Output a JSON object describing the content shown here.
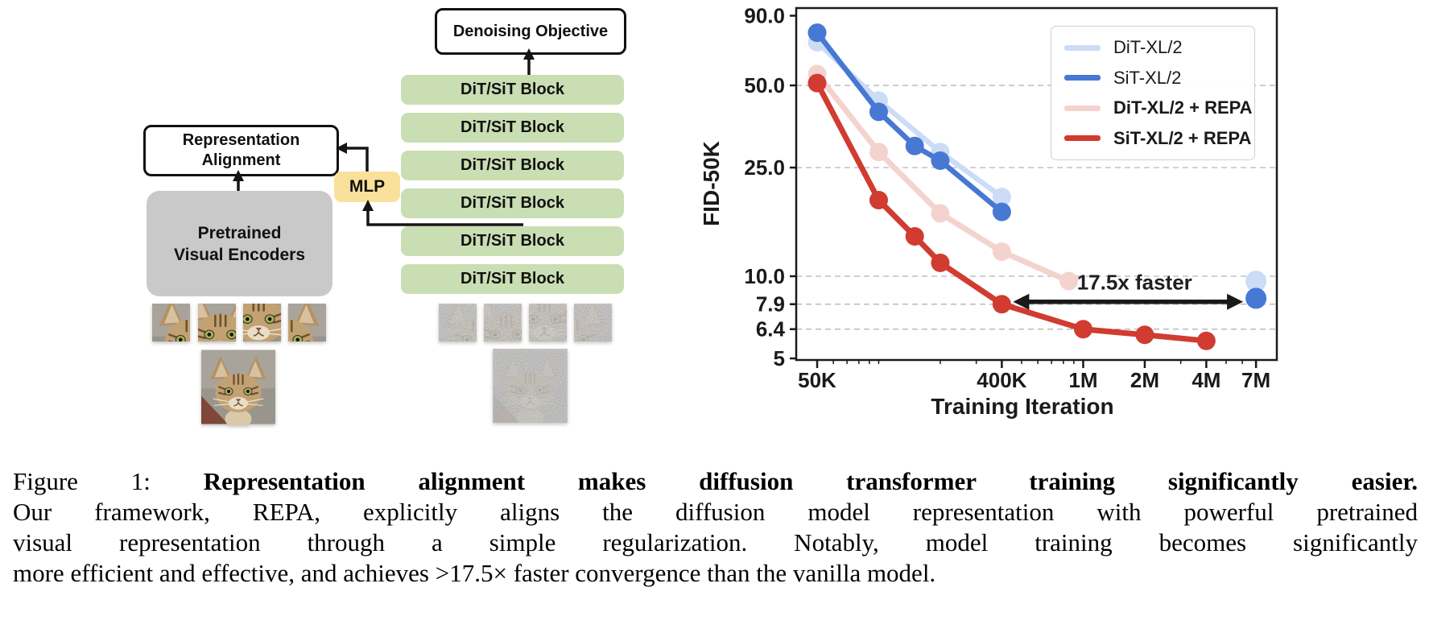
{
  "diagram": {
    "denoising_objective_label": "Denoising Objective",
    "block_label": "DiT/SiT Block",
    "num_blocks": 6,
    "representation_alignment_line1": "Representation",
    "representation_alignment_line2": "Alignment",
    "mlp_label": "MLP",
    "pretrained_line1": "Pretrained",
    "pretrained_line2": "Visual Encoders",
    "colors": {
      "block_green": "#c9deb3",
      "mlp_yellow": "#fae19b",
      "encoder_gray": "#c9c9c9",
      "box_border": "#111111"
    }
  },
  "chart_data": {
    "type": "line",
    "title": "",
    "xlabel": "Training Iteration",
    "ylabel": "FID-50K",
    "x_scale": "log",
    "y_scale": "log",
    "xlim": [
      45000,
      8500000
    ],
    "ylim": [
      5,
      95
    ],
    "grid": "dashed horizontal",
    "legend_position": "upper right",
    "x_ticks": [
      {
        "v": 50000,
        "label": "50K"
      },
      {
        "v": 400000,
        "label": "400K"
      },
      {
        "v": 1000000,
        "label": "1M"
      },
      {
        "v": 2000000,
        "label": "2M"
      },
      {
        "v": 4000000,
        "label": "4M"
      },
      {
        "v": 7000000,
        "label": "7M"
      }
    ],
    "y_ticks": [
      {
        "v": 90,
        "label": "90.0"
      },
      {
        "v": 50,
        "label": "50.0"
      },
      {
        "v": 25,
        "label": "25.0"
      },
      {
        "v": 10,
        "label": "10.0"
      },
      {
        "v": 7.9,
        "label": "7.9"
      },
      {
        "v": 6.4,
        "label": "6.4"
      },
      {
        "v": 5,
        "label": "5"
      }
    ],
    "y_gridlines": [
      50,
      25,
      10,
      7.9,
      6.4
    ],
    "series": [
      {
        "name": "DiT-XL/2",
        "color": "#ccdcf6",
        "bold": false,
        "points": [
          [
            50000,
            72
          ],
          [
            100000,
            44
          ],
          [
            200000,
            28.5
          ],
          [
            400000,
            19.5
          ]
        ],
        "isolated": [
          [
            7000000,
            9.6
          ]
        ]
      },
      {
        "name": "SiT-XL/2",
        "color": "#4678d4",
        "bold": false,
        "points": [
          [
            50000,
            78
          ],
          [
            100000,
            40
          ],
          [
            150000,
            30
          ],
          [
            200000,
            26.5
          ],
          [
            400000,
            17.2
          ]
        ],
        "isolated": [
          [
            7000000,
            8.3
          ]
        ]
      },
      {
        "name": "DiT-XL/2 + REPA",
        "color": "#f4d3ce",
        "bold": true,
        "points": [
          [
            50000,
            55
          ],
          [
            100000,
            28.5
          ],
          [
            200000,
            17
          ],
          [
            400000,
            12.3
          ],
          [
            850000,
            9.6
          ]
        ],
        "isolated": []
      },
      {
        "name": "SiT-XL/2 + REPA",
        "color": "#d13b30",
        "bold": true,
        "points": [
          [
            50000,
            51
          ],
          [
            100000,
            19
          ],
          [
            150000,
            14
          ],
          [
            200000,
            11.2
          ],
          [
            400000,
            7.9
          ],
          [
            1000000,
            6.4
          ],
          [
            2000000,
            6.1
          ],
          [
            4000000,
            5.8
          ]
        ],
        "isolated": []
      }
    ],
    "annotation": {
      "text": "17.5x faster",
      "from_x": 400000,
      "to_x": 7000000,
      "y": 7.9
    }
  },
  "caption": {
    "line1_prefix": "Figure 1: ",
    "line1_bold": "Representation alignment makes diffusion transformer training significantly easier.",
    "line2": "Our framework, REPA, explicitly aligns the diffusion model representation with powerful pretrained",
    "line3": "visual representation through a simple regularization. Notably, model training becomes significantly",
    "line4": "more efficient and effective, and achieves >17.5× faster convergence than the vanilla model."
  }
}
